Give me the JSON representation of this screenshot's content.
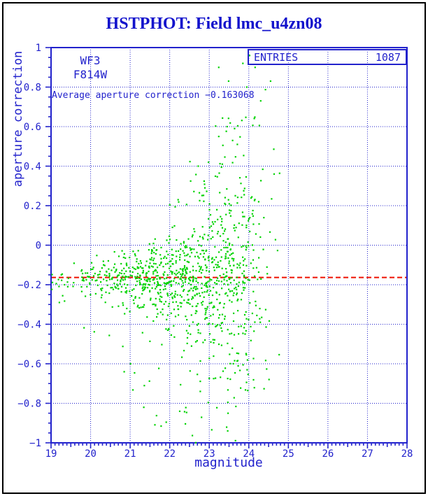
{
  "title": "HSTPHOT: Field lmc_u4zn08",
  "colors": {
    "title_blue": "#1212cc",
    "axis_blue": "#2222cc",
    "marker_green": "#00d300",
    "reference_red": "#ee1100",
    "window_border_black": "#000000",
    "background": "#ffffff"
  },
  "annotations": {
    "camera": "WF3",
    "filter": "F814W",
    "average_line_label": "Average aperture correction −0.163068"
  },
  "stats": {
    "entries_label": "ENTRIES",
    "entries_value": "1087"
  },
  "chart_data": {
    "type": "scatter",
    "title": "HSTPHOT: Field lmc_u4zn08",
    "xlabel": "magnitude",
    "ylabel": "aperture correction",
    "xlim": [
      19,
      28
    ],
    "ylim": [
      -1,
      1
    ],
    "x_major_tick_step": 1,
    "x_minor_tick_step": 0.1,
    "y_major_tick_step": 0.2,
    "y_minor_tick_step": 0.05,
    "x_tick_labels": [
      "19",
      "20",
      "21",
      "22",
      "23",
      "24",
      "25",
      "26",
      "27",
      "28"
    ],
    "y_tick_values": [
      1,
      0.8,
      0.6,
      0.4,
      0.2,
      0,
      -0.2,
      -0.4,
      -0.6,
      -0.8,
      -1
    ],
    "y_tick_labels": [
      "1",
      "0.8",
      "0.6",
      "0.4",
      "0.2",
      "0",
      "−0.2",
      "−0.4",
      "−0.6",
      "−0.8",
      "−1"
    ],
    "grid": true,
    "legend_position": "top-right",
    "entries": 1087,
    "average_aperture_correction": -0.163068,
    "reference_line": {
      "y": -0.163068,
      "color": "#ee1100",
      "style": "dashed"
    },
    "marker": {
      "shape": "square",
      "size": 2.2,
      "color": "#00d300"
    },
    "x_data_range": [
      19.0,
      24.8
    ],
    "seed": 77,
    "distribution_bins": [
      {
        "x0": 19.0,
        "x1": 19.5,
        "n_core": 14,
        "mean": -0.168,
        "sigma": 0.035,
        "n_tail": 1,
        "tail_lo": -0.35,
        "tail_hi": -0.25
      },
      {
        "x0": 19.5,
        "x1": 20.0,
        "n_core": 24,
        "mean": -0.168,
        "sigma": 0.04,
        "n_tail": 1,
        "tail_lo": -0.45,
        "tail_hi": -0.3
      },
      {
        "x0": 20.0,
        "x1": 20.5,
        "n_core": 42,
        "mean": -0.168,
        "sigma": 0.05,
        "n_tail": 2,
        "tail_lo": -0.5,
        "tail_hi": -0.3
      },
      {
        "x0": 20.5,
        "x1": 21.0,
        "n_core": 68,
        "mean": -0.168,
        "sigma": 0.06,
        "n_tail": 4,
        "tail_lo": -0.65,
        "tail_hi": -0.3
      },
      {
        "x0": 21.0,
        "x1": 21.5,
        "n_core": 95,
        "mean": -0.165,
        "sigma": 0.07,
        "n_tail": 9,
        "tail_lo": -0.85,
        "tail_hi": -0.3
      },
      {
        "x0": 21.5,
        "x1": 22.0,
        "n_core": 115,
        "mean": -0.165,
        "sigma": 0.09,
        "n_tail": 16,
        "tail_lo": -0.95,
        "tail_hi": 0.08
      },
      {
        "x0": 22.0,
        "x1": 22.5,
        "n_core": 125,
        "mean": -0.16,
        "sigma": 0.12,
        "n_tail": 26,
        "tail_lo": -1.0,
        "tail_hi": 0.3
      },
      {
        "x0": 22.5,
        "x1": 23.0,
        "n_core": 130,
        "mean": -0.16,
        "sigma": 0.16,
        "n_tail": 32,
        "tail_lo": -1.0,
        "tail_hi": 0.45
      },
      {
        "x0": 23.0,
        "x1": 23.5,
        "n_core": 125,
        "mean": -0.155,
        "sigma": 0.2,
        "n_tail": 42,
        "tail_lo": -1.0,
        "tail_hi": 0.65
      },
      {
        "x0": 23.5,
        "x1": 24.0,
        "n_core": 112,
        "mean": -0.15,
        "sigma": 0.24,
        "n_tail": 42,
        "tail_lo": -1.0,
        "tail_hi": 0.75
      },
      {
        "x0": 24.0,
        "x1": 24.5,
        "n_core": 42,
        "mean": -0.14,
        "sigma": 0.28,
        "n_tail": 18,
        "tail_lo": -1.0,
        "tail_hi": 0.8
      },
      {
        "x0": 24.5,
        "x1": 24.8,
        "n_core": 5,
        "mean": -0.14,
        "sigma": 0.3,
        "n_tail": 4,
        "tail_lo": -0.9,
        "tail_hi": 0.5
      }
    ],
    "notable_points": [
      [
        19.21,
        -0.29
      ],
      [
        23.24,
        0.9
      ],
      [
        23.85,
        0.92
      ],
      [
        24.02,
        0.96
      ],
      [
        23.49,
        0.83
      ],
      [
        23.95,
        0.8
      ],
      [
        24.16,
        0.9
      ],
      [
        24.55,
        0.83
      ],
      [
        23.45,
        0.6
      ],
      [
        23.64,
        0.59
      ],
      [
        23.24,
        0.55
      ],
      [
        23.59,
        0.53
      ],
      [
        23.71,
        0.51
      ],
      [
        22.98,
        0.42
      ],
      [
        23.33,
        0.41
      ],
      [
        22.72,
        0.4
      ],
      [
        24.25,
        0.22
      ],
      [
        24.64,
        0.36
      ]
    ]
  }
}
